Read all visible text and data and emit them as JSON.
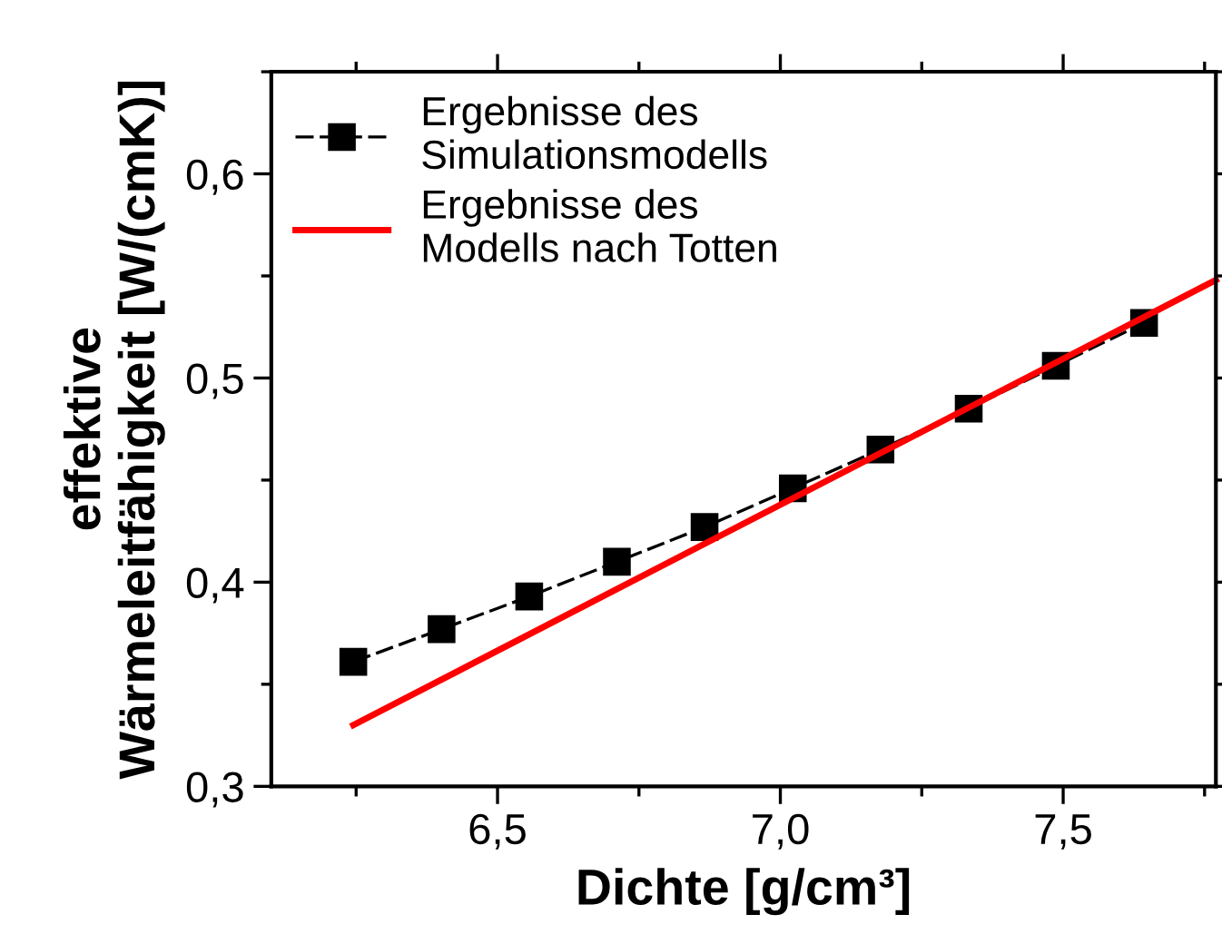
{
  "chart_data": {
    "type": "line",
    "xlabel": "Dichte [g/cm³]",
    "ylabel": "effektive\nWärmeleitfähigkeit [W/(cmK)]",
    "xlim": [
      6.1,
      7.77
    ],
    "ylim": [
      0.3,
      0.65
    ],
    "xticks": [
      {
        "value": 6.5,
        "label": "6,5"
      },
      {
        "value": 7.0,
        "label": "7,0"
      },
      {
        "value": 7.5,
        "label": "7,5"
      }
    ],
    "yticks": [
      {
        "value": 0.3,
        "label": "0,3"
      },
      {
        "value": 0.4,
        "label": "0,4"
      },
      {
        "value": 0.5,
        "label": "0,5"
      },
      {
        "value": 0.6,
        "label": "0,6"
      }
    ],
    "grid": false,
    "legend": "top left",
    "series": [
      {
        "name": "Ergebnisse des\nSimulationsmodells",
        "color": "#000000",
        "marker": "square",
        "line_style": "dashed",
        "x": [
          6.245,
          6.401,
          6.556,
          6.711,
          6.866,
          7.022,
          7.177,
          7.333,
          7.487,
          7.643
        ],
        "values": [
          0.361,
          0.377,
          0.393,
          0.41,
          0.427,
          0.446,
          0.465,
          0.485,
          0.506,
          0.527
        ]
      },
      {
        "name": "Ergebnisse des\nModells nach Totten",
        "color": "#ff0000",
        "marker": "none",
        "line_style": "solid",
        "x": [
          6.245,
          7.77
        ],
        "values": [
          0.33,
          0.548
        ]
      }
    ]
  }
}
